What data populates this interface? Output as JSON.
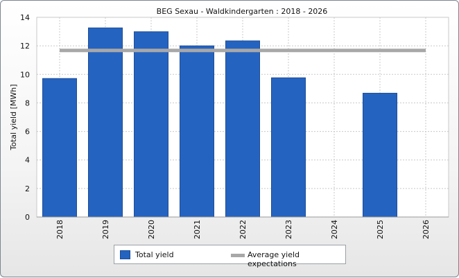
{
  "chart_data": {
    "type": "bar",
    "title": "BEG Sexau - Waldkindergarten : 2018 - 2026",
    "xlabel": "",
    "ylabel": "Total yield [MWh]",
    "ylim": [
      0,
      14
    ],
    "yticks": [
      0,
      2,
      4,
      6,
      8,
      10,
      12,
      14
    ],
    "categories": [
      "2018",
      "2019",
      "2020",
      "2021",
      "2022",
      "2023",
      "2024",
      "2025",
      "2026"
    ],
    "series": [
      {
        "name": "Total yield",
        "type": "bar",
        "color": "#2563c0",
        "values": [
          9.71,
          13.26,
          12.99,
          12.0,
          12.35,
          9.76,
          null,
          8.68,
          null
        ]
      },
      {
        "name": "Average yield expectations",
        "type": "line",
        "color": "#a8a8a8",
        "values": [
          11.68,
          11.68,
          11.68,
          11.68,
          11.68,
          11.68,
          11.68,
          11.68,
          11.68
        ]
      }
    ],
    "grid": true,
    "legend": "bottom-center"
  }
}
